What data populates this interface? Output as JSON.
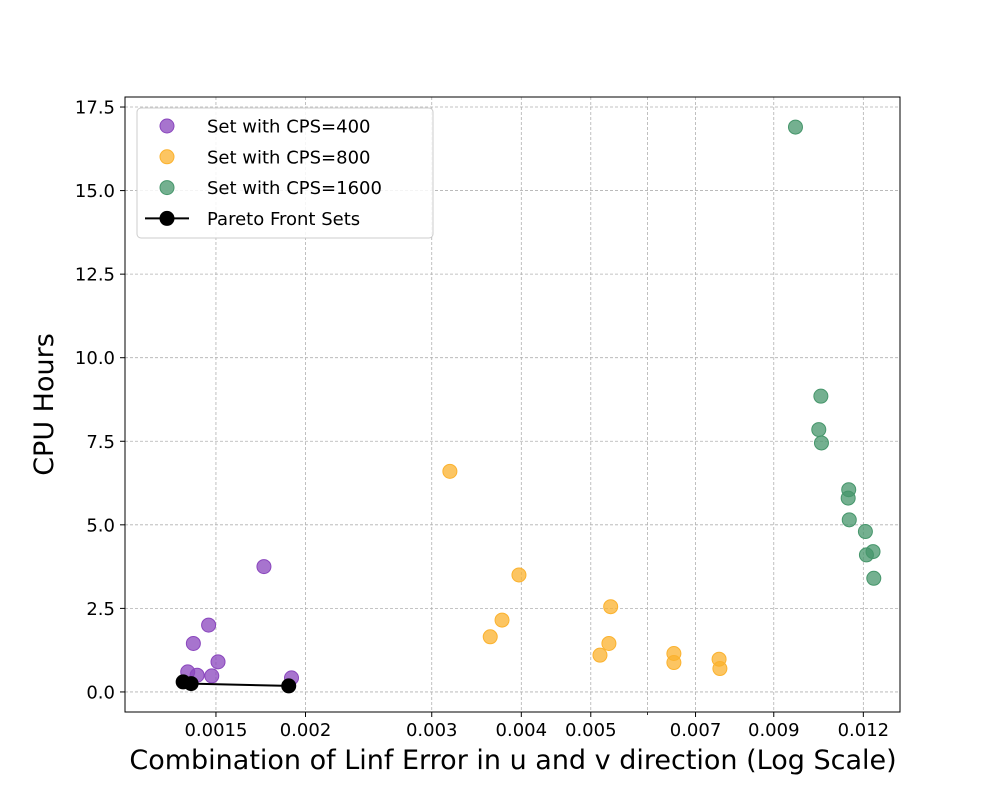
{
  "chart_data": {
    "type": "scatter",
    "title": "",
    "xlabel": "Combination of Linf Error in u and v direction (Log Scale)",
    "ylabel": "CPU Hours",
    "x_scale": "log",
    "xlim": [
      0.00112,
      0.0135
    ],
    "ylim": [
      -0.6,
      17.8
    ],
    "x_ticks": [
      {
        "value": 0.0015,
        "label": "0.0015"
      },
      {
        "value": 0.002,
        "label": "0.002"
      },
      {
        "value": 0.003,
        "label": "0.003"
      },
      {
        "value": 0.004,
        "label": "0.004"
      },
      {
        "value": 0.005,
        "label": "0.005"
      },
      {
        "value": 0.007,
        "label": "0.007"
      },
      {
        "value": 0.009,
        "label": "0.009"
      },
      {
        "value": 0.012,
        "label": "0.012"
      }
    ],
    "x_minor_ticks": [
      0.006
    ],
    "y_ticks": [
      {
        "value": 0.0,
        "label": "0.0"
      },
      {
        "value": 2.5,
        "label": "2.5"
      },
      {
        "value": 5.0,
        "label": "5.0"
      },
      {
        "value": 7.5,
        "label": "7.5"
      },
      {
        "value": 10.0,
        "label": "10.0"
      },
      {
        "value": 12.5,
        "label": "12.5"
      },
      {
        "value": 15.0,
        "label": "15.0"
      },
      {
        "value": 17.5,
        "label": "17.5"
      }
    ],
    "grid": true,
    "legend_position": "top-left",
    "series": [
      {
        "name": "Set with CPS=400",
        "color": "#8a46bd",
        "kind": "scatter",
        "points": [
          {
            "x": 0.00137,
            "y": 0.6
          },
          {
            "x": 0.001395,
            "y": 1.45
          },
          {
            "x": 0.001412,
            "y": 0.5
          },
          {
            "x": 0.001465,
            "y": 2.0
          },
          {
            "x": 0.00148,
            "y": 0.48
          },
          {
            "x": 0.00151,
            "y": 0.9
          },
          {
            "x": 0.00175,
            "y": 3.75
          },
          {
            "x": 0.001912,
            "y": 0.42
          }
        ]
      },
      {
        "name": "Set with CPS=800",
        "color": "#fbb22e",
        "kind": "scatter",
        "points": [
          {
            "x": 0.00318,
            "y": 6.6
          },
          {
            "x": 0.00362,
            "y": 1.65
          },
          {
            "x": 0.00376,
            "y": 2.15
          },
          {
            "x": 0.00397,
            "y": 3.5
          },
          {
            "x": 0.00515,
            "y": 1.1
          },
          {
            "x": 0.0053,
            "y": 1.45
          },
          {
            "x": 0.00533,
            "y": 2.55
          },
          {
            "x": 0.00653,
            "y": 1.15
          },
          {
            "x": 0.00653,
            "y": 0.88
          },
          {
            "x": 0.00755,
            "y": 0.98
          },
          {
            "x": 0.00757,
            "y": 0.7
          }
        ]
      },
      {
        "name": "Set with CPS=1600",
        "color": "#46966b",
        "kind": "scatter",
        "points": [
          {
            "x": 0.00965,
            "y": 16.9
          },
          {
            "x": 0.0104,
            "y": 7.85
          },
          {
            "x": 0.01047,
            "y": 8.85
          },
          {
            "x": 0.01049,
            "y": 7.45
          },
          {
            "x": 0.01145,
            "y": 6.05
          },
          {
            "x": 0.01143,
            "y": 5.8
          },
          {
            "x": 0.01147,
            "y": 5.15
          },
          {
            "x": 0.01208,
            "y": 4.8
          },
          {
            "x": 0.01212,
            "y": 4.1
          },
          {
            "x": 0.01238,
            "y": 4.2
          },
          {
            "x": 0.01241,
            "y": 3.4
          }
        ]
      },
      {
        "name": "Pareto Front Sets",
        "color": "#000000",
        "kind": "line-marker",
        "points": [
          {
            "x": 0.00135,
            "y": 0.3
          },
          {
            "x": 0.001385,
            "y": 0.25
          },
          {
            "x": 0.001895,
            "y": 0.18
          }
        ]
      }
    ]
  }
}
